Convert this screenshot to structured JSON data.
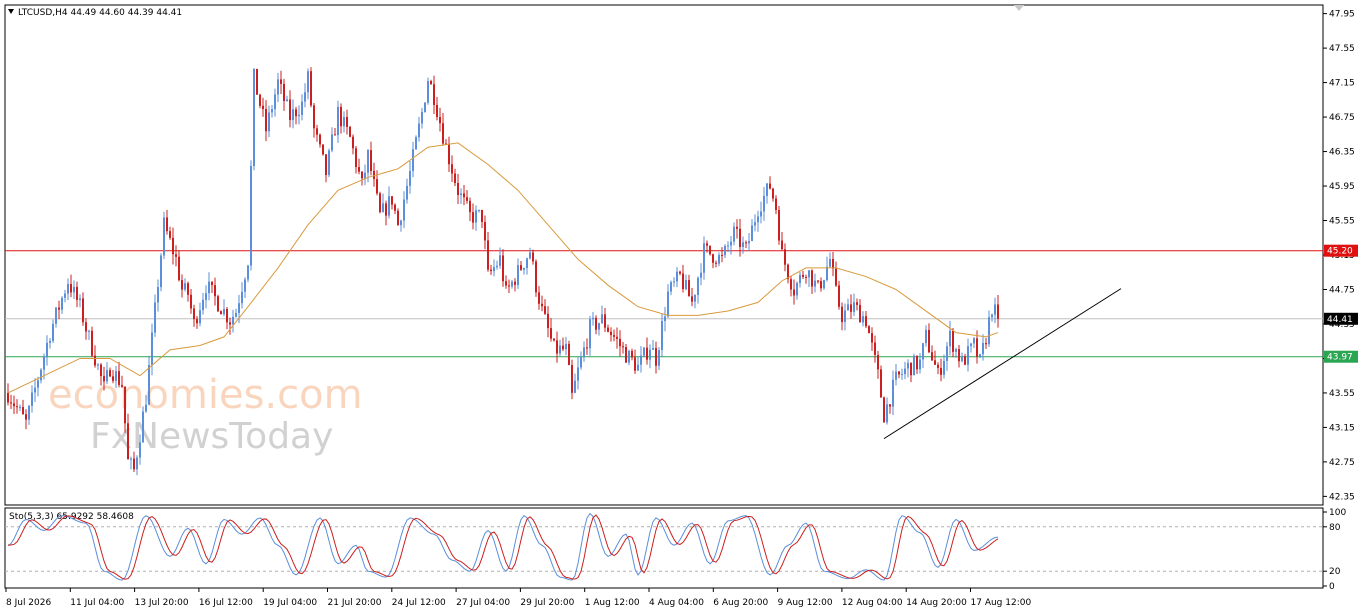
{
  "chart_data": [
    {
      "type": "candlestick",
      "title": "LTCUSD,H4  44.49 44.60 44.39 44.41",
      "x_labels": [
        "8 Jul 2026",
        "11 Jul 04:00",
        "13 Jul 20:00",
        "16 Jul 12:00",
        "19 Jul 04:00",
        "21 Jul 20:00",
        "24 Jul 12:00",
        "27 Jul 04:00",
        "29 Jul 20:00",
        "1 Aug 12:00",
        "4 Aug 04:00",
        "6 Aug 20:00",
        "9 Aug 12:00",
        "12 Aug 04:00",
        "14 Aug 20:00",
        "17 Aug 12:00"
      ],
      "y_ticks": [
        "47.95",
        "47.55",
        "47.15",
        "46.75",
        "46.35",
        "45.95",
        "45.55",
        "45.15",
        "44.75",
        "44.35",
        "43.95",
        "43.55",
        "43.15",
        "42.75",
        "42.35"
      ],
      "ylim": [
        42.25,
        48.05
      ],
      "colors": {
        "up": "#5b8fd9",
        "down": "#cc1f1f",
        "ma": "#d99a3c"
      },
      "close_path": [
        [
          0,
          43.55
        ],
        [
          6,
          43.2
        ],
        [
          14,
          44.25
        ],
        [
          20,
          44.85
        ],
        [
          24,
          44.55
        ],
        [
          26,
          44.3
        ],
        [
          30,
          43.85
        ],
        [
          32,
          43.6
        ],
        [
          34,
          43.85
        ],
        [
          38,
          43.65
        ],
        [
          40,
          42.75
        ],
        [
          42,
          42.65
        ],
        [
          46,
          43.5
        ],
        [
          52,
          45.5
        ],
        [
          56,
          45.1
        ],
        [
          58,
          44.75
        ],
        [
          60,
          44.7
        ],
        [
          62,
          44.35
        ],
        [
          66,
          44.8
        ],
        [
          70,
          44.6
        ],
        [
          74,
          44.4
        ],
        [
          76,
          44.5
        ],
        [
          80,
          45.1
        ],
        [
          82,
          47.2
        ],
        [
          86,
          46.6
        ],
        [
          90,
          47.15
        ],
        [
          94,
          46.75
        ],
        [
          98,
          46.9
        ],
        [
          100,
          47.2
        ],
        [
          102,
          46.6
        ],
        [
          106,
          46.1
        ],
        [
          110,
          46.8
        ],
        [
          114,
          46.5
        ],
        [
          118,
          45.95
        ],
        [
          120,
          46.3
        ],
        [
          124,
          45.6
        ],
        [
          128,
          45.8
        ],
        [
          130,
          45.5
        ],
        [
          134,
          46.1
        ],
        [
          138,
          46.8
        ],
        [
          140,
          47.2
        ],
        [
          142,
          47.0
        ],
        [
          146,
          46.4
        ],
        [
          150,
          45.9
        ],
        [
          154,
          45.6
        ],
        [
          158,
          45.6
        ],
        [
          160,
          44.9
        ],
        [
          164,
          45.1
        ],
        [
          166,
          44.7
        ],
        [
          170,
          44.95
        ],
        [
          174,
          45.2
        ],
        [
          176,
          44.8
        ],
        [
          178,
          44.5
        ],
        [
          182,
          44.05
        ],
        [
          186,
          44.05
        ],
        [
          188,
          43.5
        ],
        [
          190,
          43.8
        ],
        [
          194,
          44.3
        ],
        [
          198,
          44.4
        ],
        [
          202,
          44.2
        ],
        [
          206,
          44.0
        ],
        [
          210,
          43.85
        ],
        [
          214,
          44.1
        ],
        [
          216,
          43.95
        ],
        [
          220,
          44.7
        ],
        [
          224,
          44.9
        ],
        [
          228,
          44.6
        ],
        [
          232,
          45.2
        ],
        [
          238,
          45.1
        ],
        [
          242,
          45.4
        ],
        [
          246,
          45.2
        ],
        [
          250,
          45.7
        ],
        [
          254,
          45.95
        ],
        [
          256,
          45.7
        ],
        [
          258,
          45.15
        ],
        [
          262,
          44.75
        ],
        [
          266,
          45.0
        ],
        [
          270,
          44.75
        ],
        [
          274,
          45.1
        ],
        [
          276,
          44.7
        ],
        [
          278,
          44.45
        ],
        [
          282,
          44.55
        ],
        [
          286,
          44.4
        ],
        [
          290,
          43.75
        ],
        [
          292,
          43.3
        ],
        [
          296,
          43.7
        ],
        [
          300,
          43.85
        ],
        [
          304,
          43.9
        ],
        [
          306,
          44.2
        ],
        [
          310,
          43.75
        ],
        [
          314,
          44.2
        ],
        [
          318,
          43.9
        ],
        [
          322,
          44.1
        ],
        [
          324,
          43.9
        ],
        [
          326,
          44.2
        ],
        [
          328,
          44.55
        ],
        [
          330,
          44.41
        ]
      ],
      "ma_path": [
        [
          0,
          43.55
        ],
        [
          24,
          43.95
        ],
        [
          34,
          43.95
        ],
        [
          44,
          43.75
        ],
        [
          54,
          44.05
        ],
        [
          64,
          44.1
        ],
        [
          72,
          44.2
        ],
        [
          80,
          44.55
        ],
        [
          90,
          45.0
        ],
        [
          100,
          45.5
        ],
        [
          110,
          45.9
        ],
        [
          120,
          46.05
        ],
        [
          130,
          46.15
        ],
        [
          140,
          46.4
        ],
        [
          150,
          46.45
        ],
        [
          160,
          46.2
        ],
        [
          170,
          45.9
        ],
        [
          180,
          45.5
        ],
        [
          190,
          45.1
        ],
        [
          200,
          44.8
        ],
        [
          210,
          44.55
        ],
        [
          220,
          44.45
        ],
        [
          230,
          44.45
        ],
        [
          240,
          44.5
        ],
        [
          250,
          44.6
        ],
        [
          258,
          44.85
        ],
        [
          266,
          45.0
        ],
        [
          276,
          45.0
        ],
        [
          286,
          44.9
        ],
        [
          296,
          44.75
        ],
        [
          306,
          44.5
        ],
        [
          316,
          44.25
        ],
        [
          326,
          44.2
        ],
        [
          330,
          44.25
        ]
      ],
      "levels": [
        {
          "price": 45.2,
          "label": "45.20",
          "color": "#e01010"
        },
        {
          "price": 44.41,
          "label": "44.41",
          "color": "#c0c0c0",
          "label_bg": "#000000"
        },
        {
          "price": 43.97,
          "label": "43.97",
          "color": "#2aa552"
        }
      ],
      "trendline": [
        [
          292,
          43.02
        ],
        [
          371,
          44.76
        ]
      ]
    },
    {
      "type": "line",
      "title": "Sto(5,3,3) 65.9292 58.4608",
      "y_ticks": [
        "100",
        "80",
        "20",
        "0"
      ],
      "ylim": [
        0,
        100
      ],
      "colors": {
        "main": "#5b8fd9",
        "signal": "#cc1f1f"
      },
      "swing_path": [
        [
          0,
          55
        ],
        [
          6,
          90
        ],
        [
          12,
          75
        ],
        [
          18,
          95
        ],
        [
          26,
          85
        ],
        [
          32,
          20
        ],
        [
          38,
          8
        ],
        [
          46,
          95
        ],
        [
          54,
          40
        ],
        [
          60,
          78
        ],
        [
          66,
          30
        ],
        [
          72,
          90
        ],
        [
          78,
          70
        ],
        [
          84,
          92
        ],
        [
          90,
          55
        ],
        [
          96,
          15
        ],
        [
          104,
          92
        ],
        [
          110,
          30
        ],
        [
          116,
          55
        ],
        [
          120,
          20
        ],
        [
          126,
          12
        ],
        [
          134,
          92
        ],
        [
          142,
          70
        ],
        [
          148,
          35
        ],
        [
          154,
          20
        ],
        [
          160,
          75
        ],
        [
          166,
          20
        ],
        [
          172,
          95
        ],
        [
          178,
          55
        ],
        [
          184,
          12
        ],
        [
          188,
          8
        ],
        [
          194,
          98
        ],
        [
          200,
          40
        ],
        [
          206,
          70
        ],
        [
          210,
          15
        ],
        [
          216,
          92
        ],
        [
          222,
          55
        ],
        [
          228,
          85
        ],
        [
          234,
          30
        ],
        [
          240,
          88
        ],
        [
          246,
          95
        ],
        [
          254,
          15
        ],
        [
          260,
          55
        ],
        [
          266,
          85
        ],
        [
          272,
          20
        ],
        [
          280,
          10
        ],
        [
          286,
          22
        ],
        [
          292,
          8
        ],
        [
          298,
          95
        ],
        [
          304,
          72
        ],
        [
          310,
          25
        ],
        [
          316,
          90
        ],
        [
          322,
          48
        ],
        [
          330,
          66
        ]
      ]
    }
  ],
  "watermark": {
    "line1": "economies.com",
    "line2": "FxNewsToday"
  }
}
